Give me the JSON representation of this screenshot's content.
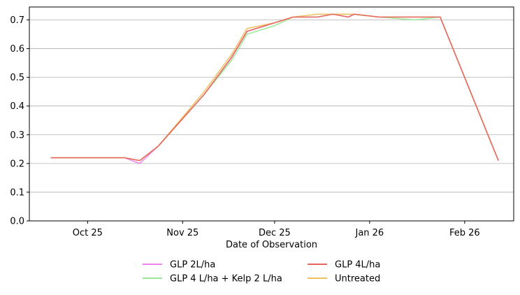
{
  "chart_data": {
    "type": "line",
    "title": "",
    "xlabel": "Date of Observation",
    "ylabel": "",
    "x_ticks": [
      {
        "date": "2025-10-25",
        "label": "Oct 25"
      },
      {
        "date": "2025-11-25",
        "label": "Nov 25"
      },
      {
        "date": "2025-12-25",
        "label": "Dec 25"
      },
      {
        "date": "2026-01-25",
        "label": "Jan 26"
      },
      {
        "date": "2026-02-25",
        "label": "Feb 26"
      }
    ],
    "xlim": [
      "2025-10-06",
      "2026-03-13"
    ],
    "ylim": [
      0,
      0.745
    ],
    "y_ticks": [
      0.0,
      0.1,
      0.2,
      0.3,
      0.4,
      0.5,
      0.6,
      0.7
    ],
    "y_tick_labels": [
      "0.0",
      "0.1",
      "0.2",
      "0.3",
      "0.4",
      "0.5",
      "0.6",
      "0.7"
    ],
    "grid": "horizontal",
    "legend_position": "below plot, two columns",
    "series": [
      {
        "name": "GLP 2L/ha",
        "color": "#ee82ee",
        "points": [
          [
            "2025-10-13",
            0.22
          ],
          [
            "2025-11-06",
            0.22
          ],
          [
            "2025-11-11",
            0.2
          ],
          [
            "2025-11-17",
            0.26
          ],
          [
            "2025-12-02",
            0.44
          ],
          [
            "2025-12-11",
            0.57
          ],
          [
            "2025-12-16",
            0.66
          ],
          [
            "2025-12-25",
            0.69
          ],
          [
            "2025-12-31",
            0.71
          ],
          [
            "2026-01-08",
            0.71
          ],
          [
            "2026-01-13",
            0.72
          ],
          [
            "2026-01-18",
            0.71
          ],
          [
            "2026-01-20",
            0.72
          ],
          [
            "2026-01-28",
            0.71
          ],
          [
            "2026-02-17",
            0.71
          ],
          [
            "2026-03-08",
            0.21
          ]
        ]
      },
      {
        "name": "GLP 4L/ha",
        "color": "#e8665f",
        "points": [
          [
            "2025-10-13",
            0.22
          ],
          [
            "2025-11-06",
            0.22
          ],
          [
            "2025-11-11",
            0.21
          ],
          [
            "2025-11-17",
            0.26
          ],
          [
            "2025-12-02",
            0.44
          ],
          [
            "2025-12-11",
            0.57
          ],
          [
            "2025-12-16",
            0.66
          ],
          [
            "2025-12-25",
            0.69
          ],
          [
            "2025-12-31",
            0.71
          ],
          [
            "2026-01-08",
            0.71
          ],
          [
            "2026-01-13",
            0.72
          ],
          [
            "2026-01-18",
            0.71
          ],
          [
            "2026-01-20",
            0.72
          ],
          [
            "2026-01-28",
            0.71
          ],
          [
            "2026-02-17",
            0.71
          ],
          [
            "2026-03-08",
            0.21
          ]
        ]
      },
      {
        "name": "GLP 4 L/ha + Kelp 2 L/ha",
        "color": "#98e898",
        "points": [
          [
            "2025-10-13",
            0.22
          ],
          [
            "2025-11-06",
            0.22
          ],
          [
            "2025-11-11",
            0.21
          ],
          [
            "2025-11-17",
            0.26
          ],
          [
            "2025-12-02",
            0.44
          ],
          [
            "2025-12-11",
            0.56
          ],
          [
            "2025-12-16",
            0.65
          ],
          [
            "2025-12-25",
            0.68
          ],
          [
            "2025-12-31",
            0.71
          ],
          [
            "2026-01-08",
            0.71
          ],
          [
            "2026-01-13",
            0.72
          ],
          [
            "2026-01-18",
            0.72
          ],
          [
            "2026-01-20",
            0.72
          ],
          [
            "2026-01-28",
            0.71
          ],
          [
            "2026-02-09",
            0.7
          ],
          [
            "2026-02-17",
            0.71
          ],
          [
            "2026-03-08",
            0.21
          ]
        ]
      },
      {
        "name": "Untreated",
        "color": "#f0c060",
        "points": [
          [
            "2025-10-13",
            0.22
          ],
          [
            "2025-11-06",
            0.22
          ],
          [
            "2025-11-11",
            0.21
          ],
          [
            "2025-11-17",
            0.26
          ],
          [
            "2025-12-02",
            0.45
          ],
          [
            "2025-12-11",
            0.58
          ],
          [
            "2025-12-16",
            0.67
          ],
          [
            "2025-12-25",
            0.69
          ],
          [
            "2025-12-31",
            0.71
          ],
          [
            "2026-01-08",
            0.72
          ],
          [
            "2026-01-13",
            0.72
          ],
          [
            "2026-01-18",
            0.72
          ],
          [
            "2026-01-20",
            0.72
          ],
          [
            "2026-01-28",
            0.71
          ],
          [
            "2026-02-17",
            0.71
          ],
          [
            "2026-03-08",
            0.21
          ]
        ]
      }
    ],
    "draw_order": [
      "GLP 2L/ha",
      "GLP 4 L/ha + Kelp 2 L/ha",
      "Untreated",
      "GLP 4L/ha"
    ],
    "legend": [
      {
        "label": "GLP 2L/ha",
        "color": "#ee82ee"
      },
      {
        "label": "GLP 4 L/ha + Kelp 2 L/ha",
        "color": "#98e898"
      },
      {
        "label": "GLP 4L/ha",
        "color": "#e8665f"
      },
      {
        "label": "Untreated",
        "color": "#f0c060"
      }
    ]
  }
}
